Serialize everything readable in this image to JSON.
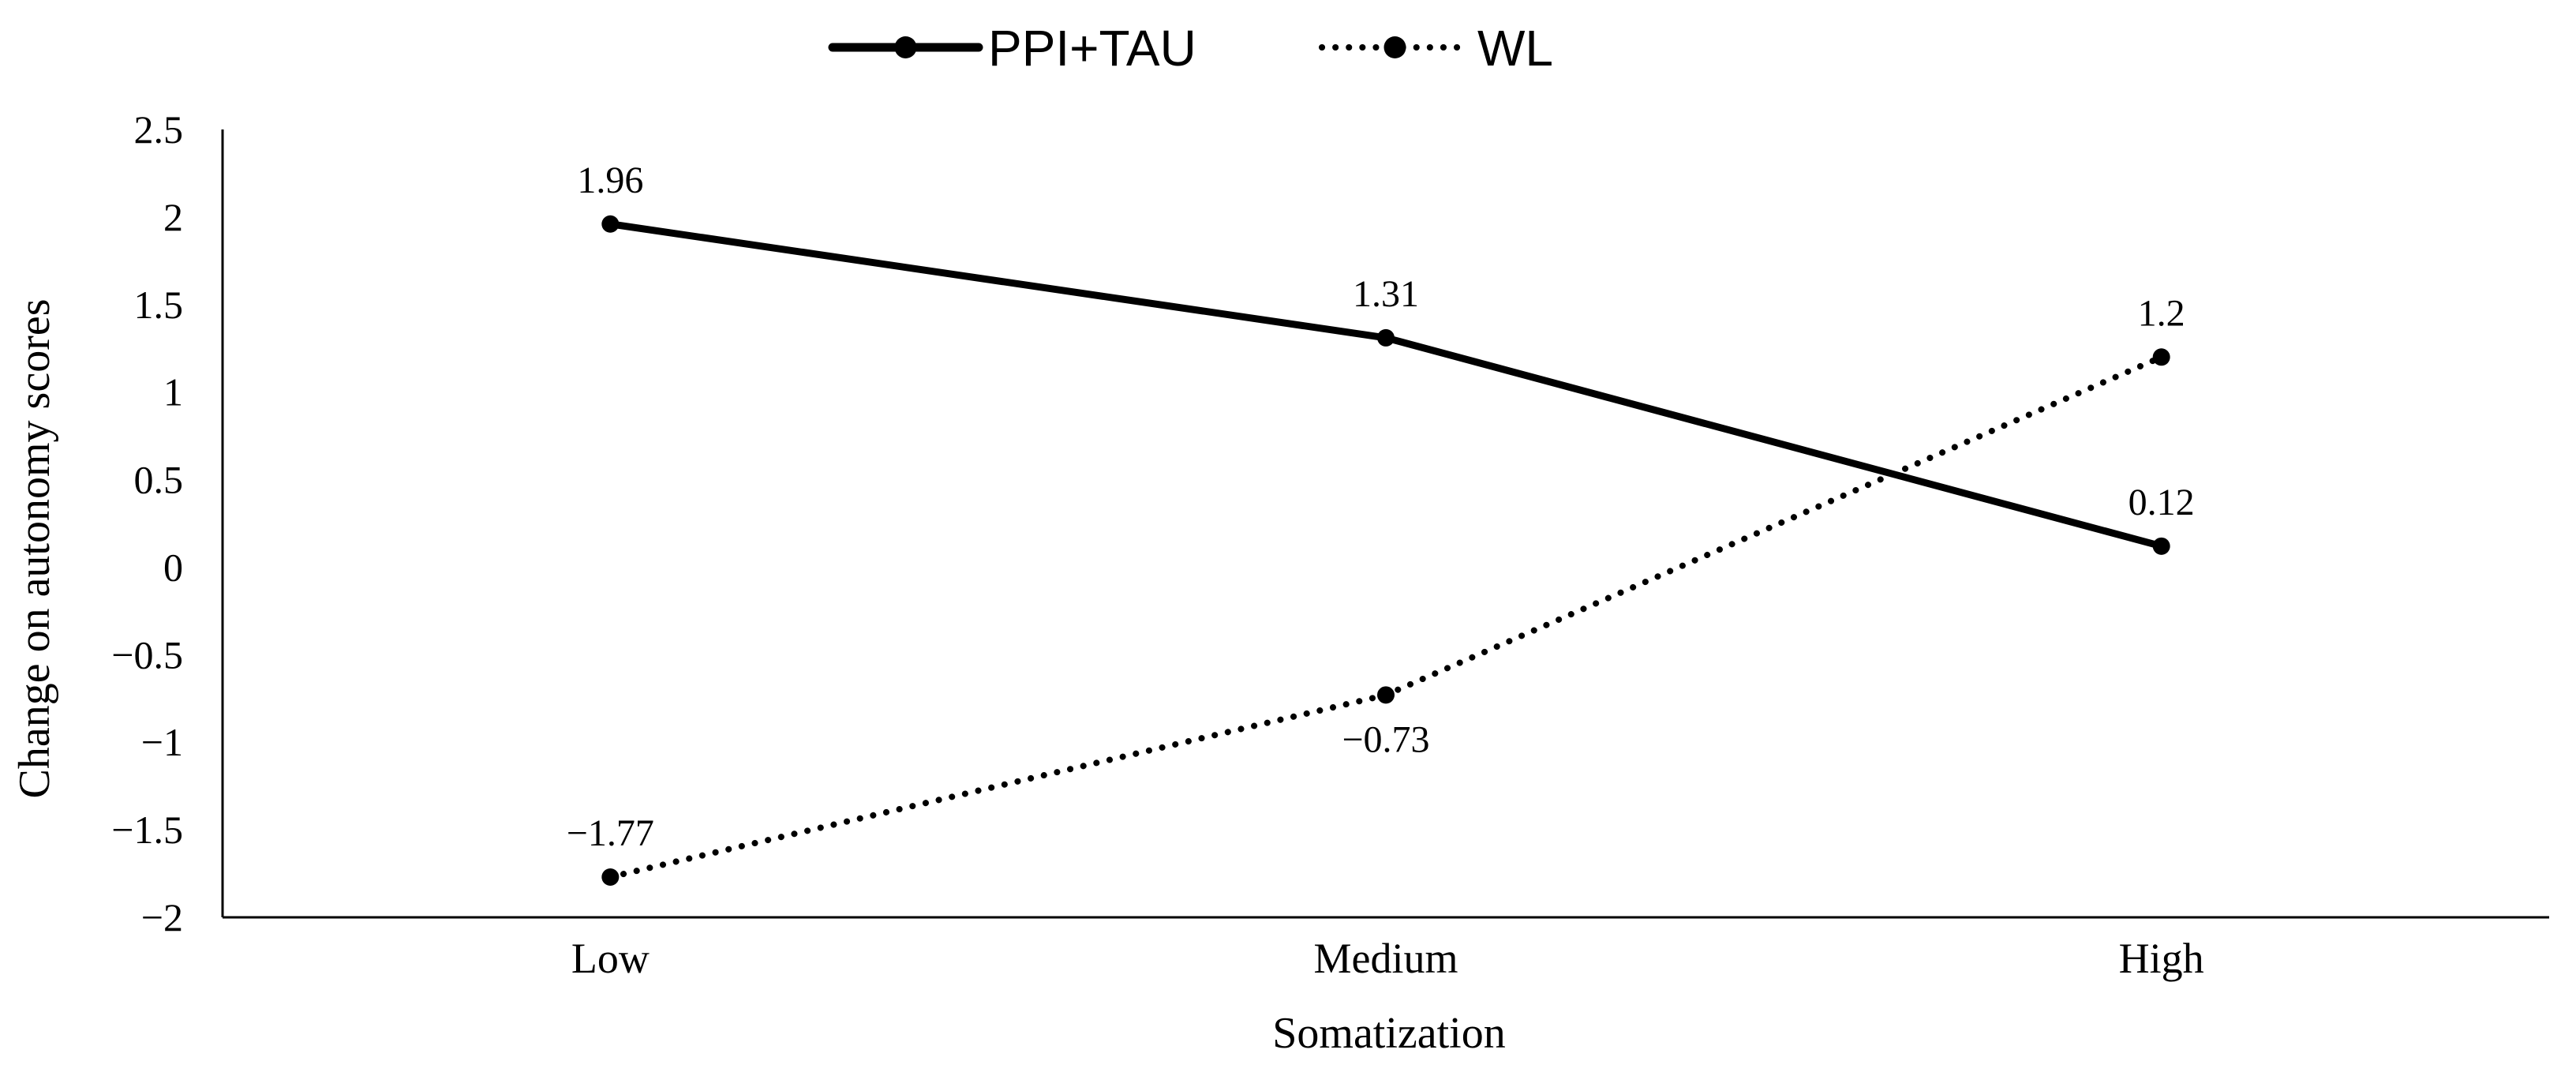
{
  "chart_data": {
    "type": "line",
    "title": "",
    "xlabel": "Somatization",
    "ylabel": "Change on autonomy scores",
    "categories": [
      "Low",
      "Medium",
      "High"
    ],
    "ylim": [
      -2,
      2.5
    ],
    "yticks": [
      2.5,
      2,
      1.5,
      1,
      0.5,
      0,
      -0.5,
      -1,
      -1.5,
      -2
    ],
    "ytick_labels": [
      "2.5",
      "2",
      "1.5",
      "1",
      "0.5",
      "0",
      "−0.5",
      "−1",
      "−1.5",
      "−2"
    ],
    "grid": false,
    "legend_position": "top-center",
    "series": [
      {
        "name": "PPI+TAU",
        "style": "solid",
        "color": "#000000",
        "values": [
          1.96,
          1.31,
          0.12
        ],
        "value_labels": [
          "1.96",
          "1.31",
          "0.12"
        ],
        "label_positions": [
          "above",
          "above",
          "above"
        ]
      },
      {
        "name": "WL",
        "style": "dotted",
        "color": "#000000",
        "values": [
          -1.77,
          -0.73,
          1.2
        ],
        "value_labels": [
          "−1.77",
          "−0.73",
          "1.2"
        ],
        "label_positions": [
          "above",
          "below",
          "above"
        ]
      }
    ]
  }
}
